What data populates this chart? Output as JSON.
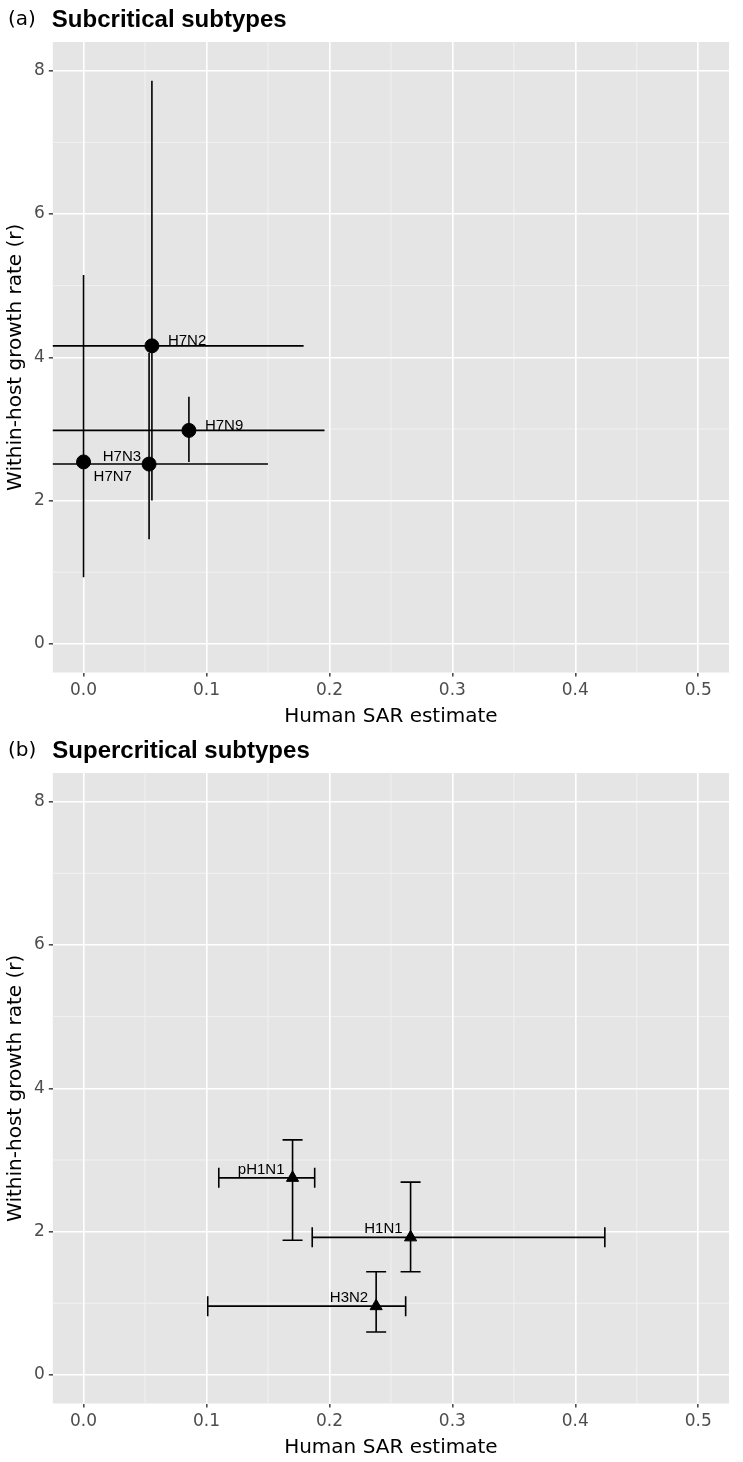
{
  "chart_data": [
    {
      "type": "scatter",
      "title": "Subcritical subtypes",
      "xlabel": "Human SAR estimate",
      "ylabel": "Within-host growth rate (r)",
      "marker": "circle",
      "grid": true,
      "xlim": [
        -0.025,
        0.525
      ],
      "xticks": [
        {
          "value": 0,
          "label": "0.0"
        },
        0.1,
        0.2,
        0.3,
        0.4,
        0.5
      ],
      "ylim": [
        -0.4,
        8.4
      ],
      "yticks": [
        0,
        2,
        4,
        6,
        8
      ],
      "series": [
        {
          "color": "#000000",
          "x": [
            0.0556,
            0.0857,
            0.0533,
            0
          ],
          "values": [
            4.16,
            2.98,
            2.51,
            2.54
          ],
          "errors": [
            [
              2.0,
              7.86
            ],
            [
              2.54,
              3.45
            ],
            [
              1.46,
              4.06
            ],
            [
              0.93,
              5.15
            ]
          ],
          "xerrors": [
            [
              -0.025,
              0.179
            ],
            [
              -0.025,
              0.196
            ],
            [
              -0.025,
              0.15
            ],
            null
          ]
        }
      ],
      "annotations": [
        "(a)",
        {
          "text": "H7N2",
          "x": 0.0556,
          "y": 4.16
        },
        {
          "text": "H7N9",
          "x": 0.0857,
          "y": 2.98
        },
        {
          "text": "H7N3",
          "x": 0.0533,
          "y": 2.51
        },
        {
          "text": "H7N7",
          "x": 0,
          "y": 2.54
        }
      ]
    },
    {
      "type": "scatter",
      "title": "Supercritical subtypes",
      "xlabel": "Human SAR estimate",
      "ylabel": "Within-host growth rate (r)",
      "marker": "triangle",
      "grid": true,
      "xlim": [
        -0.025,
        0.525
      ],
      "xticks": [
        {
          "value": 0,
          "label": "0.0"
        },
        0.1,
        0.2,
        0.3,
        0.4,
        0.5
      ],
      "ylim": [
        -0.4,
        8.4
      ],
      "yticks": [
        0,
        2,
        4,
        6,
        8
      ],
      "series": [
        {
          "color": "#000000",
          "x": [
            0.17,
            0.266,
            0.238
          ],
          "values": [
            2.75,
            1.92,
            0.96
          ],
          "errors": [
            [
              1.88,
              3.28
            ],
            [
              1.44,
              2.69
            ],
            [
              0.6,
              1.44
            ]
          ],
          "xerrors": [
            [
              0.11,
              0.188
            ],
            [
              0.186,
              0.424
            ],
            [
              0.101,
              0.262
            ]
          ]
        }
      ],
      "annotations": [
        "(b)",
        {
          "text": "pH1N1",
          "x": 0.17,
          "y": 2.75
        },
        {
          "text": "H1N1",
          "x": 0.266,
          "y": 1.92
        },
        {
          "text": "H3N2",
          "x": 0.238,
          "y": 0.96
        }
      ]
    }
  ]
}
